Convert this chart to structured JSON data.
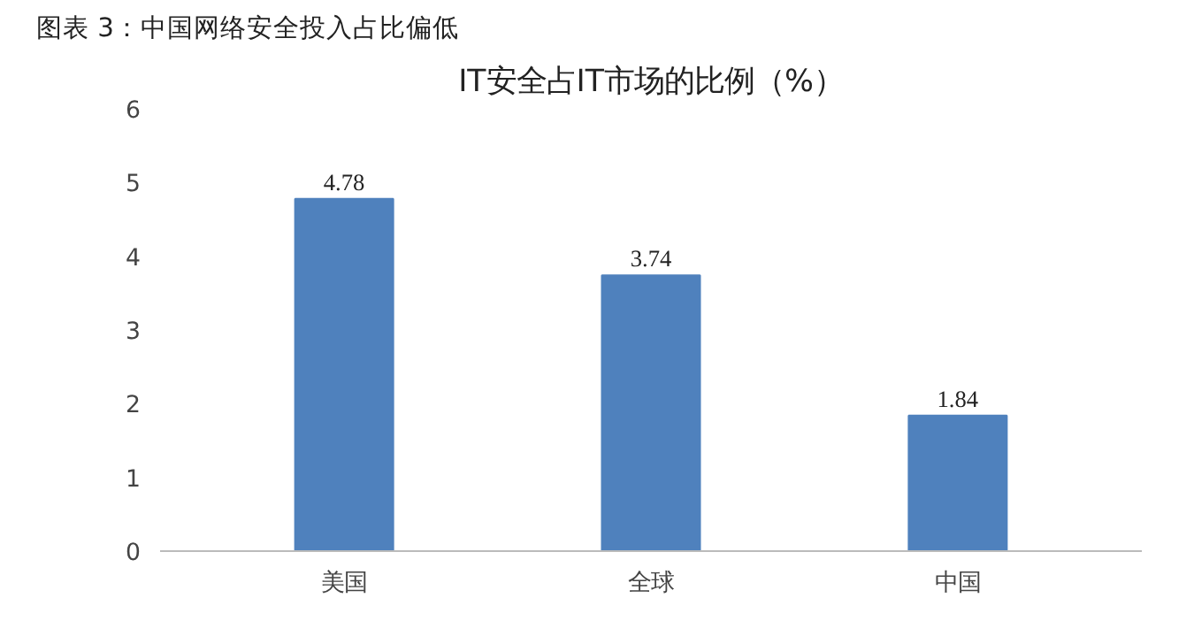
{
  "chart_data": {
    "type": "bar",
    "title": "图表 3：中国网络安全投入占比偏低",
    "subtitle": "IT安全占IT市场的比例（%）",
    "categories": [
      "美国",
      "全球",
      "中国"
    ],
    "values": [
      4.78,
      3.74,
      1.84
    ],
    "color": "#4f81bd",
    "ylim": [
      0,
      6
    ],
    "yticks": [
      0,
      1,
      2,
      3,
      4,
      5,
      6
    ],
    "data_labels": true,
    "grid": false
  }
}
